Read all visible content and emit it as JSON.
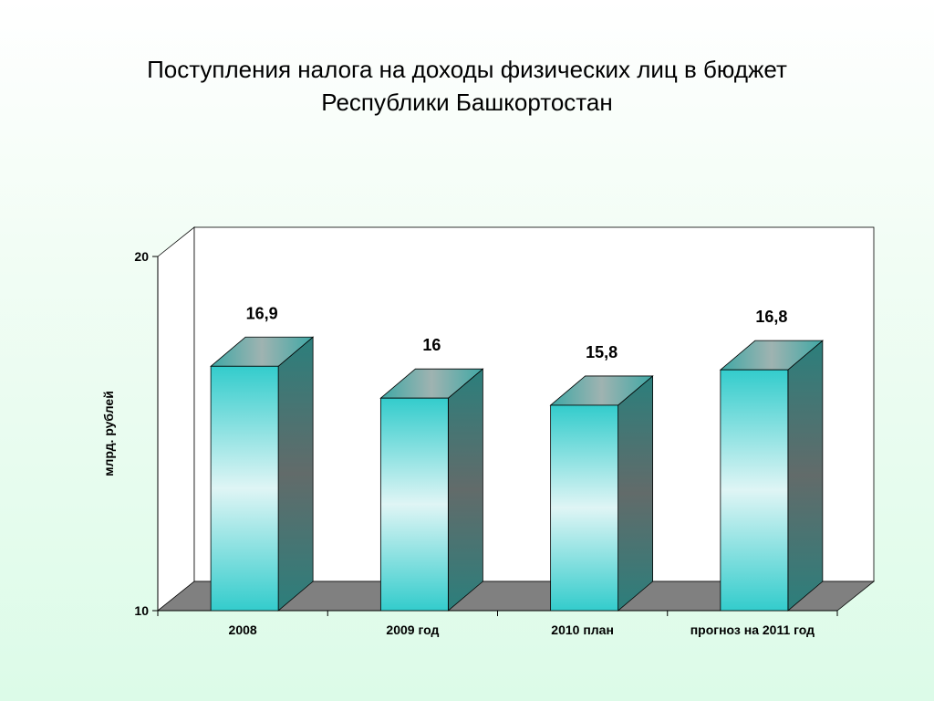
{
  "slide": {
    "title_line1": "Поступления налога на доходы физических лиц в бюджет",
    "title_line2": "Республики Башкортостан"
  },
  "chart_data": {
    "type": "bar",
    "style": "3d-column",
    "categories": [
      "2008",
      "2009 год",
      "2010 план",
      "прогноз на 2011 год"
    ],
    "series": [
      {
        "values": [
          16.9,
          16,
          15.8,
          16.8
        ]
      }
    ],
    "data_labels": [
      "16,9",
      "16",
      "15,8",
      "16,8"
    ],
    "ylabel": "млрд. рублей",
    "ylim": [
      10,
      20
    ],
    "y_ticks": [
      "10",
      "20"
    ],
    "grid": false,
    "legend": "none",
    "colors": {
      "bar_front_edge": "#33cccc",
      "bar_front_center": "#d9f3f3",
      "bar_side_top": "#2b7f7c",
      "bar_side_mid": "#5e6c6a",
      "bar_top": "#4db2ad",
      "floor": "#808080",
      "walls": "#ffffff"
    }
  }
}
